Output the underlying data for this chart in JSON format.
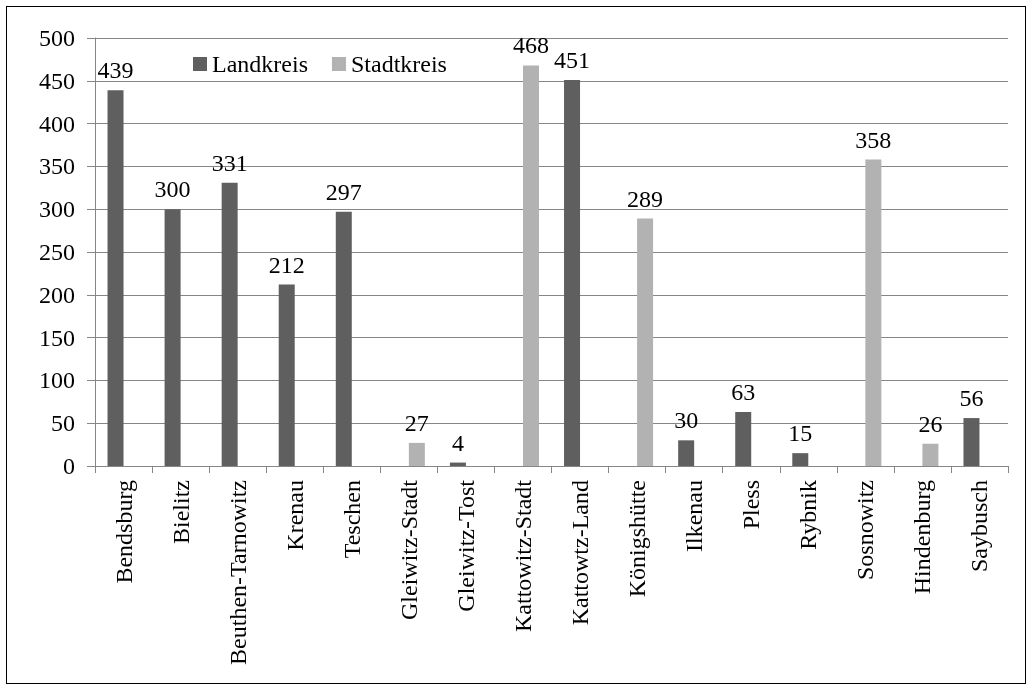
{
  "chart_data": {
    "type": "bar",
    "categories": [
      "Bendsburg",
      "Bielitz",
      "Beuthen-Tarnowitz",
      "Krenau",
      "Teschen",
      "Gleiwitz-Stadt",
      "Gleiwitz-Tost",
      "Kattowitz-Stadt",
      "Kattowtz-Land",
      "Königshütte",
      "Ilkenau",
      "Pless",
      "Rybnik",
      "Sosnowitz",
      "Hindenburg",
      "Saybusch"
    ],
    "series": [
      {
        "name": "Landkreis",
        "color": "#5f5f5f",
        "values": [
          439,
          300,
          331,
          212,
          297,
          null,
          4,
          null,
          451,
          null,
          30,
          63,
          15,
          null,
          null,
          56
        ]
      },
      {
        "name": "Stadtkreis",
        "color": "#b2b2b2",
        "values": [
          null,
          null,
          null,
          null,
          null,
          27,
          null,
          468,
          null,
          289,
          null,
          null,
          null,
          358,
          26,
          null
        ]
      }
    ],
    "ylim": [
      0,
      500
    ],
    "yticks": [
      0,
      50,
      100,
      150,
      200,
      250,
      300,
      350,
      400,
      450,
      500
    ],
    "grid": "y",
    "legend": "top left",
    "data_labels": true
  }
}
